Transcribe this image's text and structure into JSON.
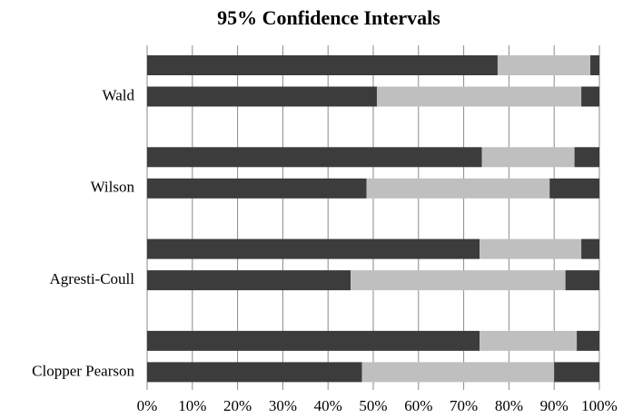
{
  "chart_data": {
    "type": "stacked-bar",
    "orientation": "horizontal",
    "title": "95% Confidence Intervals",
    "categories": [
      null,
      "Wald",
      null,
      "Wilson",
      null,
      "Agresti-Coull",
      null,
      "Clopper Pearson"
    ],
    "series": [
      {
        "color": "#3c3c3c",
        "values": [
          77.5,
          50.8,
          74,
          48.5,
          73.5,
          45,
          73.5,
          47.5
        ]
      },
      {
        "color": "#bfbfbf",
        "values": [
          20.5,
          45.2,
          20.5,
          40.5,
          22.5,
          47.5,
          21.5,
          42.5
        ]
      },
      {
        "color": "#3c3c3c",
        "values": [
          2,
          4,
          5.5,
          11,
          4,
          7.5,
          5,
          10
        ]
      }
    ],
    "xlim": [
      0,
      100
    ],
    "xticks": [
      {
        "value": 0,
        "label": "0%"
      },
      {
        "value": 10,
        "label": "10%"
      },
      {
        "value": 20,
        "label": "20%"
      },
      {
        "value": 30,
        "label": "30%"
      },
      {
        "value": 40,
        "label": "40%"
      },
      {
        "value": 50,
        "label": "50%"
      },
      {
        "value": 60,
        "label": "60%"
      },
      {
        "value": 70,
        "label": "70%"
      },
      {
        "value": 80,
        "label": "80%"
      },
      {
        "value": 90,
        "label": "90%"
      },
      {
        "value": 100,
        "label": "100%"
      }
    ],
    "grid": true
  }
}
